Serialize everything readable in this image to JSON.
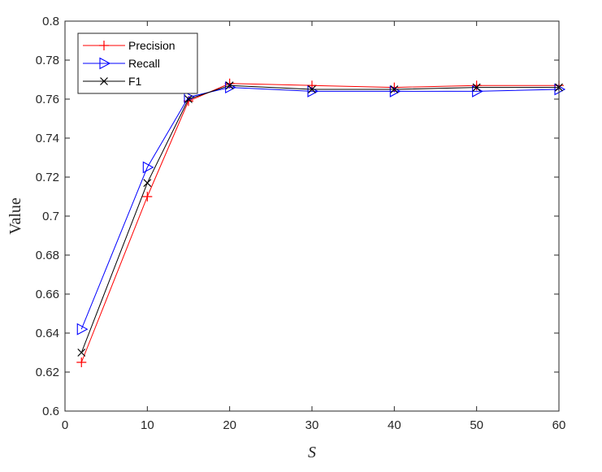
{
  "chart_data": {
    "type": "line",
    "title": "",
    "xlabel": "S",
    "ylabel": "Value",
    "xlim": [
      0,
      60
    ],
    "ylim": [
      0.6,
      0.8
    ],
    "xticks": [
      0,
      10,
      20,
      30,
      40,
      50,
      60
    ],
    "yticks": [
      0.6,
      0.62,
      0.64,
      0.66,
      0.68,
      0.7,
      0.72,
      0.74,
      0.76,
      0.78,
      0.8
    ],
    "xtick_labels": [
      "0",
      "10",
      "20",
      "30",
      "40",
      "50",
      "60"
    ],
    "ytick_labels": [
      "0.6",
      "0.62",
      "0.64",
      "0.66",
      "0.68",
      "0.7",
      "0.72",
      "0.74",
      "0.76",
      "0.78",
      "0.8"
    ],
    "grid": false,
    "legend_position": "top-left",
    "x": [
      2,
      10,
      15,
      20,
      30,
      40,
      50,
      60
    ],
    "series": [
      {
        "name": "Precision",
        "color": "#ff0000",
        "marker": "plus",
        "values": [
          0.625,
          0.71,
          0.759,
          0.768,
          0.767,
          0.766,
          0.767,
          0.767
        ]
      },
      {
        "name": "Recall",
        "color": "#0000ff",
        "marker": "triangle-right",
        "values": [
          0.642,
          0.725,
          0.761,
          0.766,
          0.764,
          0.764,
          0.764,
          0.765
        ]
      },
      {
        "name": "F1",
        "color": "#000000",
        "marker": "x",
        "values": [
          0.63,
          0.717,
          0.76,
          0.767,
          0.765,
          0.765,
          0.766,
          0.766
        ]
      }
    ]
  }
}
